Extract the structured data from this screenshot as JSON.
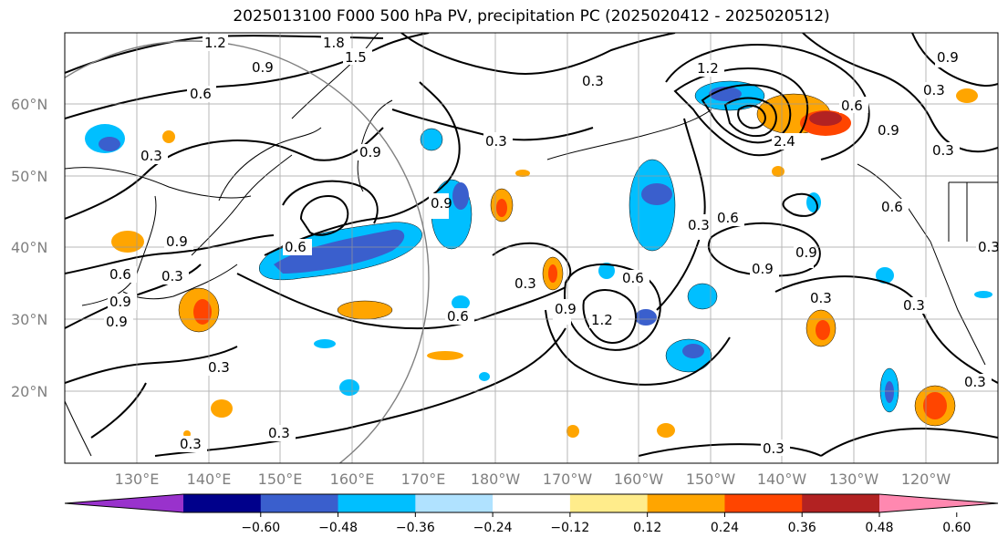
{
  "title": "2025013100 F000 500 hPa PV, precipitation PC (2025020412 - 2025020512)",
  "map": {
    "lon_labels": [
      "130°E",
      "140°E",
      "150°E",
      "160°E",
      "170°E",
      "180°W",
      "170°W",
      "160°W",
      "150°W",
      "140°W",
      "130°W",
      "120°W"
    ],
    "lat_labels": [
      "60°N",
      "50°N",
      "40°N",
      "30°N",
      "20°N"
    ],
    "contour_labels": [
      "1.2",
      "1.8",
      "1.5",
      "0.9",
      "0.6",
      "0.3",
      "0.3",
      "0.9",
      "0.9",
      "0.3",
      "0.6",
      "0.9",
      "0.9",
      "0.6",
      "0.3",
      "0.3",
      "0.6",
      "1.2",
      "0.9",
      "0.6",
      "0.3",
      "0.6",
      "0.9",
      "0.6",
      "0.3",
      "0.3",
      "0.3",
      "0.3",
      "0.3",
      "0.3",
      "0.9",
      "0.3",
      "0.3",
      "1.2",
      "0.6",
      "0.9",
      "0.9",
      "0.3",
      "0.3",
      "2.4",
      "0.9"
    ]
  },
  "colorbar": {
    "ticks": [
      "−0.60",
      "−0.48",
      "−0.36",
      "−0.24",
      "−0.12",
      "0.12",
      "0.24",
      "0.36",
      "0.48",
      "0.60"
    ],
    "colors": [
      "#9932cc",
      "#00008b",
      "#3a5fcd",
      "#00bfff",
      "#b0e2ff",
      "#ffffff",
      "#ffec8b",
      "#ffa500",
      "#ff4500",
      "#b22222",
      "#ff88b0"
    ]
  }
}
